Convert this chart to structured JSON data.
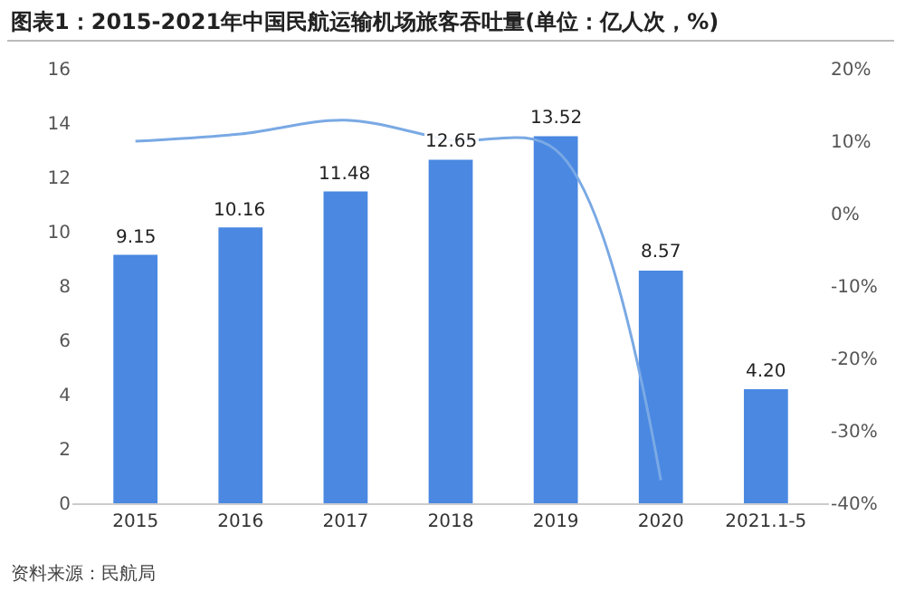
{
  "chart_data": {
    "type": "bar",
    "title": "图表1：2015-2021年中国民航运输机场旅客吞吐量(单位：亿人次，%)",
    "categories": [
      "2015",
      "2016",
      "2017",
      "2018",
      "2019",
      "2020",
      "2021.1-5"
    ],
    "series": [
      {
        "type": "bar",
        "color": "#4a88e2",
        "values": [
          9.15,
          10.16,
          11.48,
          12.65,
          13.52,
          8.57,
          4.2
        ],
        "value_labels": [
          "9.15",
          "10.16",
          "11.48",
          "12.65",
          "13.52",
          "8.57",
          "4.20"
        ]
      },
      {
        "type": "line",
        "axis": "y2",
        "color": "#7aa9e4",
        "values": [
          10,
          11,
          12.9,
          10.2,
          8.8,
          -36.8,
          null
        ]
      }
    ],
    "ylim": [
      0,
      16
    ],
    "yticks": [
      0,
      2,
      4,
      6,
      8,
      10,
      12,
      14,
      16
    ],
    "y2lim": [
      -40,
      20
    ],
    "y2ticks": [
      {
        "value": -40,
        "label": "-40%"
      },
      {
        "value": -30,
        "label": "-30%"
      },
      {
        "value": -20,
        "label": "-20%"
      },
      {
        "value": -10,
        "label": "-10%"
      },
      {
        "value": 0,
        "label": "0%"
      },
      {
        "value": 10,
        "label": "10%"
      },
      {
        "value": 20,
        "label": "20%"
      }
    ],
    "grid": false,
    "legend": false,
    "marker": "none",
    "annotations": [
      "资料来源：民航局"
    ]
  }
}
